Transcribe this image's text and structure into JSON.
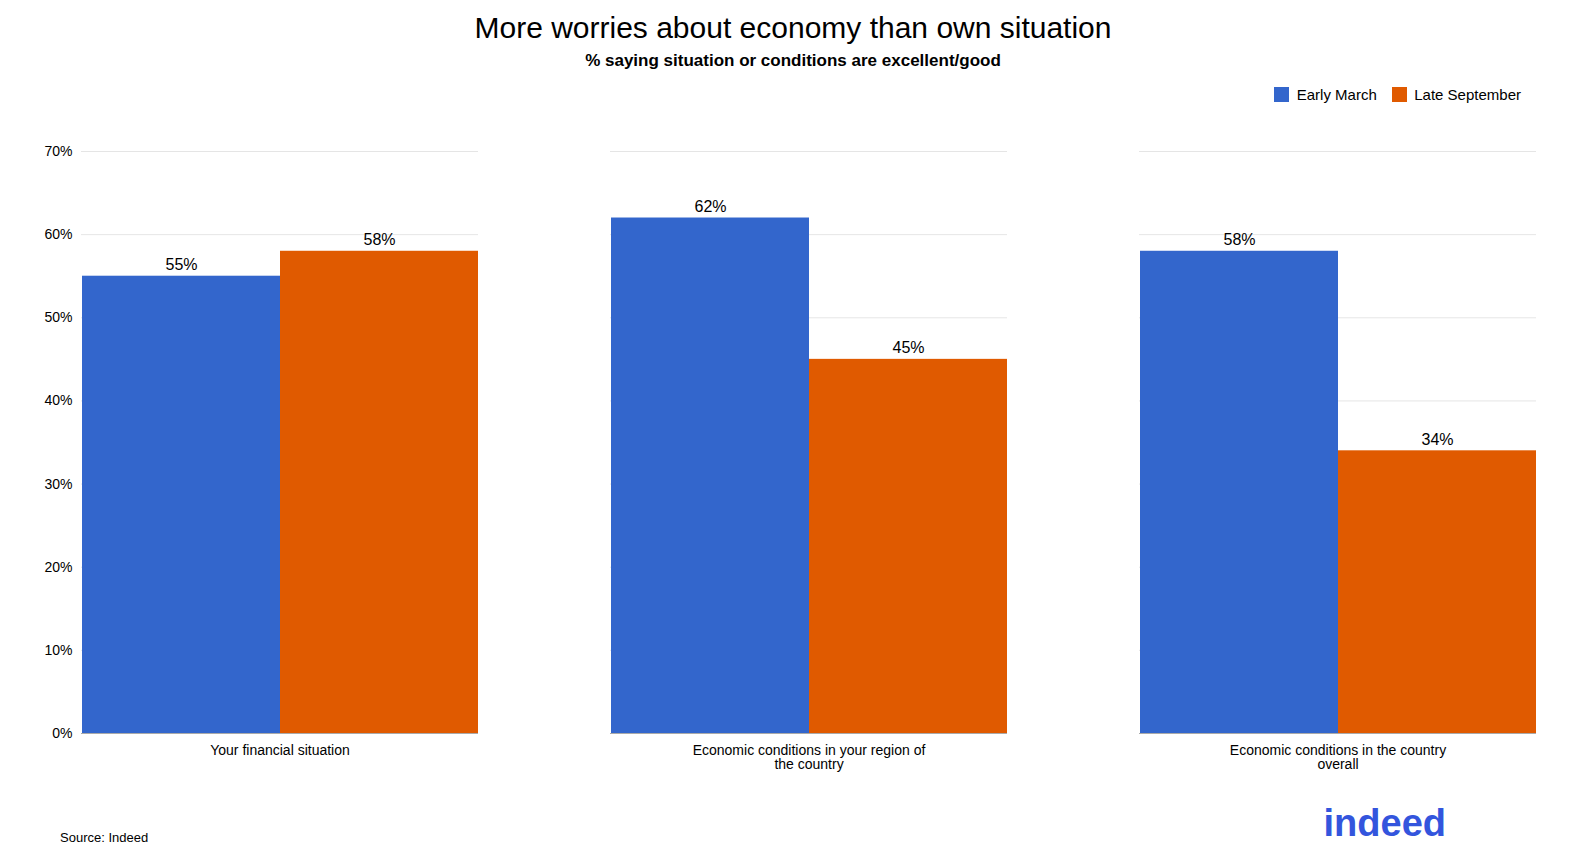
{
  "chart_data": {
    "type": "bar",
    "title": "More worries about economy than own situation",
    "subtitle": "% saying situation or conditions are excellent/good",
    "categories": [
      "Your financial situation",
      "Economic conditions in your region of\nthe country",
      "Economic conditions in the country\noverall"
    ],
    "series": [
      {
        "name": "Early March",
        "color": "#3366CC",
        "values": [
          0.55,
          0.62,
          0.58
        ],
        "value_labels": [
          "55%",
          "62%",
          "58%"
        ]
      },
      {
        "name": "Late September",
        "color": "#E05A00",
        "values": [
          0.58,
          0.45,
          0.34
        ],
        "value_labels": [
          "58%",
          "45%",
          "34%"
        ]
      }
    ],
    "ylim": [
      0,
      0.7
    ],
    "yticks": [
      {
        "value": 0.0,
        "label": "0%"
      },
      {
        "value": 0.1,
        "label": "10%"
      },
      {
        "value": 0.2,
        "label": "20%"
      },
      {
        "value": 0.3,
        "label": "30%"
      },
      {
        "value": 0.4,
        "label": "40%"
      },
      {
        "value": 0.5,
        "label": "50%"
      },
      {
        "value": 0.6,
        "label": "60%"
      },
      {
        "value": 0.7,
        "label": "70%"
      }
    ],
    "grid": true,
    "legend": "upper right",
    "data_labels": true,
    "annotations": [
      {
        "text": "Source: Indeed"
      },
      {
        "text": "indeed",
        "color": "#3355DD"
      }
    ]
  }
}
